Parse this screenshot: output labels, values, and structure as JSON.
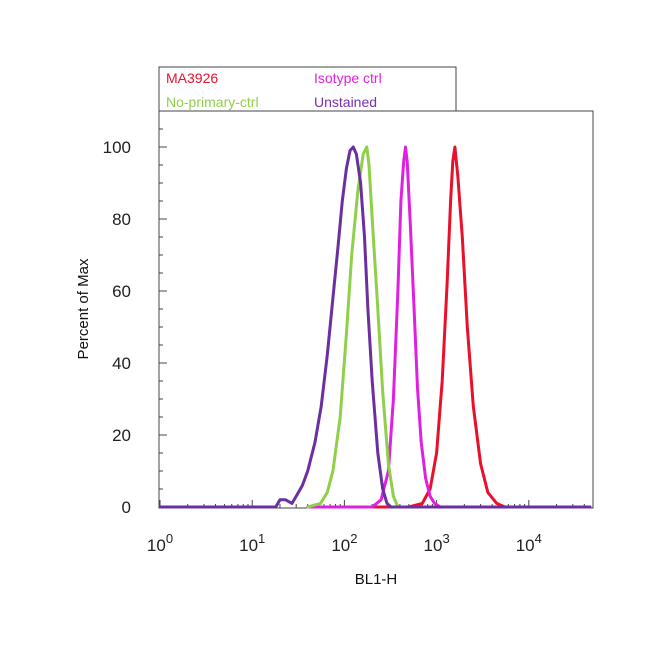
{
  "chart_data": {
    "type": "line",
    "title": "",
    "xlabel": "BL1-H",
    "ylabel": "Percent of Max",
    "x_scale": "log",
    "xlim": [
      1,
      60000
    ],
    "ylim": [
      0,
      110
    ],
    "x_tick_base": "10",
    "x_tick_exponents": [
      "0",
      "1",
      "2",
      "3",
      "4"
    ],
    "y_ticks": [
      "0",
      "20",
      "40",
      "60",
      "80",
      "100"
    ],
    "legend_placement": "top-left",
    "grid": false,
    "series": [
      {
        "name": "MA3926",
        "color": "#e8102a",
        "x": [
          140,
          300,
          500,
          700,
          850,
          1000,
          1150,
          1300,
          1420,
          1500,
          1580,
          1700,
          1900,
          2150,
          2500,
          3000,
          3600,
          4500,
          5500,
          60000
        ],
        "y": [
          0,
          0,
          0,
          1,
          5,
          15,
          35,
          62,
          85,
          96,
          100,
          92,
          75,
          50,
          28,
          12,
          4,
          1,
          0,
          0
        ]
      },
      {
        "name": "Isotype ctrl",
        "color": "#e020e0",
        "x": [
          40,
          200,
          250,
          300,
          340,
          380,
          410,
          440,
          460,
          480,
          520,
          570,
          620,
          680,
          760,
          850,
          950,
          1100,
          60000
        ],
        "y": [
          0,
          0,
          2,
          10,
          30,
          60,
          85,
          96,
          100,
          96,
          78,
          55,
          33,
          18,
          8,
          3,
          1,
          0,
          0
        ]
      },
      {
        "name": "No-primary-ctrl",
        "color": "#8fcf4a",
        "x": [
          40,
          55,
          65,
          75,
          90,
          105,
          120,
          140,
          160,
          175,
          185,
          200,
          230,
          260,
          300,
          340,
          380
        ],
        "y": [
          0,
          1,
          4,
          10,
          25,
          48,
          70,
          88,
          98,
          100,
          95,
          80,
          55,
          32,
          12,
          3,
          0
        ]
      },
      {
        "name": "Unstained",
        "color": "#6b2fa0",
        "x": [
          1,
          18,
          20,
          23,
          27,
          30,
          35,
          40,
          48,
          56,
          65,
          75,
          85,
          95,
          105,
          115,
          125,
          135,
          150,
          165,
          180,
          200,
          230,
          260,
          290,
          320,
          60000
        ],
        "y": [
          0,
          0,
          2,
          2,
          1,
          3,
          6,
          10,
          18,
          28,
          42,
          58,
          72,
          85,
          94,
          99,
          100,
          98,
          90,
          75,
          55,
          35,
          15,
          5,
          1,
          0,
          0
        ]
      }
    ]
  }
}
